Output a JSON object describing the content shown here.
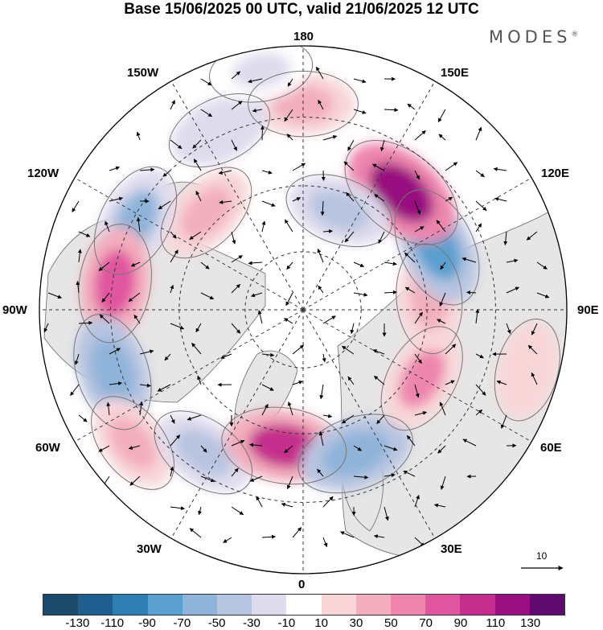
{
  "title": "Base 15/06/2025 00 UTC, valid 21/06/2025 12 UTC",
  "brand": "MODES",
  "brand_mark": "®",
  "longitude_labels": {
    "top": "180",
    "bottom": "0",
    "left": "90W",
    "right": "90E",
    "upper_left": "150W",
    "upper_right": "150E",
    "mid_upper_left": "120W",
    "mid_upper_right": "120E",
    "mid_lower_left": "60W",
    "mid_lower_right": "60E",
    "lower_left": "30W",
    "lower_right": "30E"
  },
  "reference_vector": "10",
  "colorbar": {
    "colors": [
      "#1b4a6b",
      "#1f5f8f",
      "#2f7fb5",
      "#5a9fcf",
      "#8fb3d9",
      "#b7c4e0",
      "#dedbed",
      "#ffffff",
      "#f8d6d8",
      "#f3aebd",
      "#ee85ad",
      "#e0559f",
      "#c42d8c",
      "#98107f",
      "#5e0a6e"
    ],
    "ticks": [
      "-130",
      "-110",
      "-90",
      "-70",
      "-50",
      "-30",
      "-10",
      "10",
      "30",
      "50",
      "70",
      "90",
      "110",
      "130"
    ]
  },
  "anomaly_cells": [
    {
      "lon": 180,
      "r": 0.78,
      "v": 40
    },
    {
      "lon": -155,
      "r": 0.75,
      "v": -30
    },
    {
      "lon": -135,
      "r": 0.52,
      "v": 40
    },
    {
      "lon": -118,
      "r": 0.72,
      "v": -60
    },
    {
      "lon": -98,
      "r": 0.72,
      "v": 70
    },
    {
      "lon": -72,
      "r": 0.76,
      "v": -70
    },
    {
      "lon": -52,
      "r": 0.82,
      "v": 30
    },
    {
      "lon": -35,
      "r": 0.66,
      "v": -40
    },
    {
      "lon": -8,
      "r": 0.52,
      "v": 90
    },
    {
      "lon": 20,
      "r": 0.58,
      "v": -70
    },
    {
      "lon": 60,
      "r": 0.52,
      "v": 50
    },
    {
      "lon": 95,
      "r": 0.48,
      "v": 40
    },
    {
      "lon": 115,
      "r": 0.56,
      "v": -80
    },
    {
      "lon": 140,
      "r": 0.58,
      "v": 110
    },
    {
      "lon": 160,
      "r": 0.4,
      "v": -40
    },
    {
      "lon": -170,
      "r": 0.92,
      "v": -20
    },
    {
      "lon": 75,
      "r": 0.88,
      "v": 20
    }
  ]
}
